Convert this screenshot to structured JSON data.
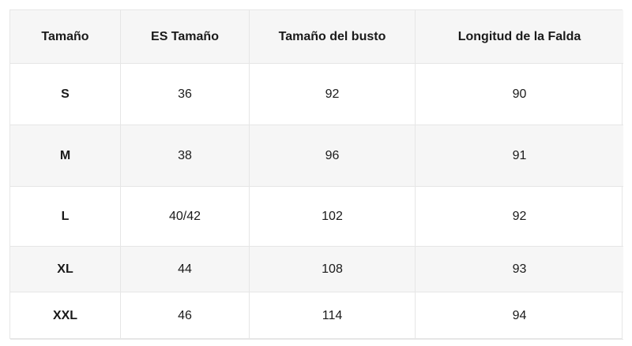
{
  "table": {
    "headers": [
      "Tamaño",
      "ES Tamaño",
      "Tamaño del busto",
      "Longitud de la Falda"
    ],
    "rows": [
      [
        "S",
        36,
        92,
        90
      ],
      [
        "M",
        38,
        96,
        91
      ],
      [
        "L",
        "40/42",
        102,
        92
      ],
      [
        "XL",
        44,
        108,
        93
      ],
      [
        "XXL",
        46,
        114,
        94
      ]
    ]
  }
}
